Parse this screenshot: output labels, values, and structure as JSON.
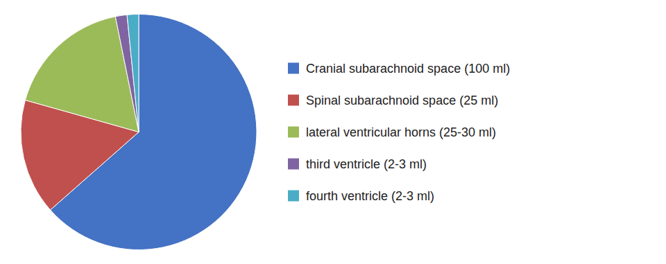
{
  "chart_data": {
    "type": "pie",
    "categories": [
      "Cranial subarachnoid space (100 ml)",
      "Spinal subarachnoid space (25 ml)",
      "lateral ventricular horns (25-30 ml)",
      "third ventricle (2-3 ml)",
      "fourth ventricle (2-3 ml)"
    ],
    "values": [
      100,
      25,
      27.5,
      2.5,
      2.5
    ],
    "colors": [
      "#4472C4",
      "#C0504D",
      "#9BBB59",
      "#8064A2",
      "#4BACC6"
    ],
    "legend": "right"
  }
}
